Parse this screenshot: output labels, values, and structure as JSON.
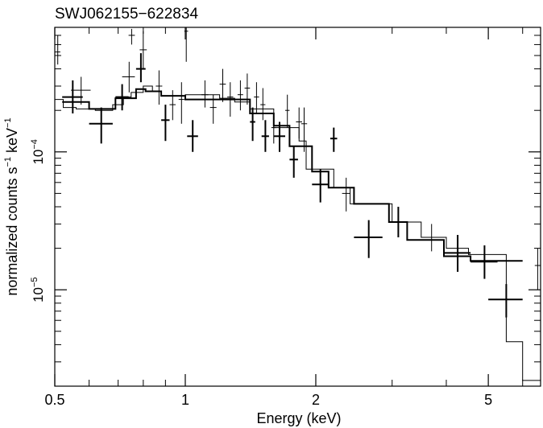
{
  "chart_data": {
    "type": "scatter",
    "title": "SWJ062155−622834",
    "xlabel": "Energy (keV)",
    "ylabel": {
      "prefix": "normalized counts s",
      "exp1": "−1",
      "middle": " keV",
      "exp2": "−1"
    },
    "x_scale": "log",
    "y_scale": "log",
    "xlim": [
      0.5,
      6.6
    ],
    "ylim": [
      2e-06,
      0.0008
    ],
    "x_ticks": [
      {
        "value": 0.5,
        "label": "0.5"
      },
      {
        "value": 1,
        "label": "1"
      },
      {
        "value": 2,
        "label": "2"
      },
      {
        "value": 5,
        "label": "5"
      }
    ],
    "y_ticks": [
      {
        "value": 0.0001,
        "mantissa": "10",
        "exp": "−4"
      },
      {
        "value": 1e-05,
        "mantissa": "10",
        "exp": "−5"
      }
    ],
    "grid": false,
    "legend": "none",
    "series": [
      {
        "style": "thin",
        "points": [
          {
            "x": 0.508,
            "xlo": 0.5,
            "xhi": 0.515,
            "y": 0.00053,
            "ylo": 0.00043,
            "yhi": 0.0007
          },
          {
            "x": 0.575,
            "xlo": 0.545,
            "xhi": 0.605,
            "y": 0.00028,
            "ylo": 0.00022,
            "yhi": 0.00035
          },
          {
            "x": 0.742,
            "xlo": 0.715,
            "xhi": 0.765,
            "y": 0.00035,
            "ylo": 0.00027,
            "yhi": 0.00045
          },
          {
            "x": 0.752,
            "xlo": 0.74,
            "xhi": 0.765,
            "y": 0.0007,
            "ylo": 0.0006,
            "yhi": 0.00078
          },
          {
            "x": 0.8,
            "xlo": 0.785,
            "xhi": 0.815,
            "y": 0.00055,
            "ylo": 0.0004,
            "yhi": 0.00075
          },
          {
            "x": 0.87,
            "xlo": 0.855,
            "xhi": 0.885,
            "y": 0.0003,
            "ylo": 0.00022,
            "yhi": 0.00039
          },
          {
            "x": 0.935,
            "xlo": 0.92,
            "xhi": 0.95,
            "y": 0.00022,
            "ylo": 0.00017,
            "yhi": 0.00028
          },
          {
            "x": 0.98,
            "xlo": 0.965,
            "xhi": 0.995,
            "y": 0.00024,
            "ylo": 0.00016,
            "yhi": 0.00032
          },
          {
            "x": 1.005,
            "xlo": 0.995,
            "xhi": 1.015,
            "y": 0.00075,
            "ylo": 0.00045,
            "yhi": 0.0008
          },
          {
            "x": 1.11,
            "xlo": 1.09,
            "xhi": 1.13,
            "y": 0.00026,
            "ylo": 0.00021,
            "yhi": 0.00033
          },
          {
            "x": 1.16,
            "xlo": 1.14,
            "xhi": 1.18,
            "y": 0.00021,
            "ylo": 0.00016,
            "yhi": 0.00026
          },
          {
            "x": 1.22,
            "xlo": 1.2,
            "xhi": 1.24,
            "y": 0.00031,
            "ylo": 0.00023,
            "yhi": 0.0004
          },
          {
            "x": 1.27,
            "xlo": 1.25,
            "xhi": 1.29,
            "y": 0.00025,
            "ylo": 0.00018,
            "yhi": 0.00032
          },
          {
            "x": 1.34,
            "xlo": 1.32,
            "xhi": 1.36,
            "y": 0.00026,
            "ylo": 0.0002,
            "yhi": 0.00033
          },
          {
            "x": 1.39,
            "xlo": 1.37,
            "xhi": 1.41,
            "y": 0.00029,
            "ylo": 0.00022,
            "yhi": 0.00037
          },
          {
            "x": 1.46,
            "xlo": 1.44,
            "xhi": 1.48,
            "y": 0.00025,
            "ylo": 0.00019,
            "yhi": 0.00032
          },
          {
            "x": 1.51,
            "xlo": 1.49,
            "xhi": 1.53,
            "y": 0.00022,
            "ylo": 0.00017,
            "yhi": 0.00029
          },
          {
            "x": 1.6,
            "xlo": 1.58,
            "xhi": 1.62,
            "y": 0.00015,
            "ylo": 0.000115,
            "yhi": 0.00019
          },
          {
            "x": 1.72,
            "xlo": 1.7,
            "xhi": 1.74,
            "y": 0.0002,
            "ylo": 0.00015,
            "yhi": 0.00026
          },
          {
            "x": 1.83,
            "xlo": 1.8,
            "xhi": 1.86,
            "y": 0.000165,
            "ylo": 0.000125,
            "yhi": 0.00021
          },
          {
            "x": 1.88,
            "xlo": 1.85,
            "xhi": 1.91,
            "y": 0.00016,
            "ylo": 0.0001,
            "yhi": 0.00021
          },
          {
            "x": 2.35,
            "xlo": 2.3,
            "xhi": 2.4,
            "y": 5e-05,
            "ylo": 3.7e-05,
            "yhi": 6.5e-05
          },
          {
            "x": 3.7,
            "xlo": 3.55,
            "xhi": 3.85,
            "y": 2.4e-05,
            "ylo": 1.9e-05,
            "yhi": 3e-05
          },
          {
            "x": 6.5,
            "xlo": 6.4,
            "xhi": 6.6,
            "y": 1.5e-05,
            "ylo": 1e-05,
            "yhi": 2e-05
          }
        ]
      },
      {
        "style": "thick",
        "points": [
          {
            "x": 0.55,
            "xlo": 0.52,
            "xhi": 0.58,
            "y": 0.00025,
            "ylo": 0.00019,
            "yhi": 0.00033
          },
          {
            "x": 0.64,
            "xlo": 0.6,
            "xhi": 0.68,
            "y": 0.00016,
            "ylo": 0.000115,
            "yhi": 0.00021
          },
          {
            "x": 0.715,
            "xlo": 0.69,
            "xhi": 0.74,
            "y": 0.00025,
            "ylo": 0.0002,
            "yhi": 0.00031
          },
          {
            "x": 0.79,
            "xlo": 0.77,
            "xhi": 0.81,
            "y": 0.0004,
            "ylo": 0.00032,
            "yhi": 0.00052
          },
          {
            "x": 0.9,
            "xlo": 0.88,
            "xhi": 0.92,
            "y": 0.00017,
            "ylo": 0.00012,
            "yhi": 0.00022
          },
          {
            "x": 1.04,
            "xlo": 1.01,
            "xhi": 1.07,
            "y": 0.00013,
            "ylo": 0.0001,
            "yhi": 0.00017
          },
          {
            "x": 1.43,
            "xlo": 1.41,
            "xhi": 1.45,
            "y": 0.000165,
            "ylo": 0.00012,
            "yhi": 0.00021
          },
          {
            "x": 1.53,
            "xlo": 1.5,
            "xhi": 1.56,
            "y": 0.00013,
            "ylo": 0.0001,
            "yhi": 0.00017
          },
          {
            "x": 1.65,
            "xlo": 1.6,
            "xhi": 1.7,
            "y": 0.00013,
            "ylo": 0.0001,
            "yhi": 0.000165
          },
          {
            "x": 1.78,
            "xlo": 1.74,
            "xhi": 1.82,
            "y": 8.8e-05,
            "ylo": 6.5e-05,
            "yhi": 0.00011
          },
          {
            "x": 2.05,
            "xlo": 1.96,
            "xhi": 2.14,
            "y": 5.8e-05,
            "ylo": 4.3e-05,
            "yhi": 7.5e-05
          },
          {
            "x": 2.2,
            "xlo": 2.16,
            "xhi": 2.24,
            "y": 0.000125,
            "ylo": 0.0001,
            "yhi": 0.00015
          },
          {
            "x": 2.65,
            "xlo": 2.45,
            "xhi": 2.85,
            "y": 2.4e-05,
            "ylo": 1.7e-05,
            "yhi": 3.2e-05
          },
          {
            "x": 3.1,
            "xlo": 2.95,
            "xhi": 3.25,
            "y": 3.1e-05,
            "ylo": 2.4e-05,
            "yhi": 4e-05
          },
          {
            "x": 4.25,
            "xlo": 3.95,
            "xhi": 4.55,
            "y": 1.85e-05,
            "ylo": 1.35e-05,
            "yhi": 2.5e-05
          },
          {
            "x": 4.9,
            "xlo": 4.55,
            "xhi": 5.25,
            "y": 1.6e-05,
            "ylo": 1.2e-05,
            "yhi": 2.1e-05
          },
          {
            "x": 5.5,
            "xlo": 5.0,
            "xhi": 6.0,
            "y": 8.5e-06,
            "ylo": 6.3e-06,
            "yhi": 1.1e-05
          }
        ]
      }
    ],
    "models": [
      {
        "style": "thin",
        "steps": [
          {
            "x0": 0.5,
            "x1": 0.523,
            "y": 0.00024
          },
          {
            "x0": 0.523,
            "x1": 0.56,
            "y": 0.00021
          },
          {
            "x0": 0.56,
            "x1": 0.62,
            "y": 0.000205
          },
          {
            "x0": 0.62,
            "x1": 0.68,
            "y": 0.0002
          },
          {
            "x0": 0.68,
            "x1": 0.72,
            "y": 0.00022
          },
          {
            "x0": 0.72,
            "x1": 0.75,
            "y": 0.00025
          },
          {
            "x0": 0.75,
            "x1": 0.8,
            "y": 0.00027
          },
          {
            "x0": 0.8,
            "x1": 0.84,
            "y": 0.0003
          },
          {
            "x0": 0.84,
            "x1": 0.88,
            "y": 0.000275
          },
          {
            "x0": 0.88,
            "x1": 1.0,
            "y": 0.000255
          },
          {
            "x0": 1.0,
            "x1": 1.2,
            "y": 0.00026
          },
          {
            "x0": 1.2,
            "x1": 1.3,
            "y": 0.000245
          },
          {
            "x0": 1.3,
            "x1": 1.41,
            "y": 0.00023
          },
          {
            "x0": 1.41,
            "x1": 1.6,
            "y": 0.000205
          },
          {
            "x0": 1.6,
            "x1": 1.83,
            "y": 0.00015
          },
          {
            "x0": 1.83,
            "x1": 1.9,
            "y": 0.00012
          },
          {
            "x0": 1.9,
            "x1": 2.2,
            "y": 7.5e-05
          },
          {
            "x0": 2.2,
            "x1": 2.4,
            "y": 5.5e-05
          },
          {
            "x0": 2.4,
            "x1": 3.0,
            "y": 4.2e-05
          },
          {
            "x0": 3.0,
            "x1": 3.5,
            "y": 3.1e-05
          },
          {
            "x0": 3.5,
            "x1": 4.0,
            "y": 2.4e-05
          },
          {
            "x0": 4.0,
            "x1": 4.5,
            "y": 2e-05
          },
          {
            "x0": 4.5,
            "x1": 5.5,
            "y": 1.8e-05
          },
          {
            "x0": 5.5,
            "x1": 6.0,
            "y": 4.2e-06
          },
          {
            "x0": 6.0,
            "x1": 6.6,
            "y": 2.2e-06
          }
        ]
      },
      {
        "style": "thick",
        "steps": [
          {
            "x0": 0.52,
            "x1": 0.6,
            "y": 0.00023
          },
          {
            "x0": 0.6,
            "x1": 0.69,
            "y": 0.000205
          },
          {
            "x0": 0.69,
            "x1": 0.77,
            "y": 0.000245
          },
          {
            "x0": 0.77,
            "x1": 0.81,
            "y": 0.000285
          },
          {
            "x0": 0.81,
            "x1": 0.88,
            "y": 0.000275
          },
          {
            "x0": 0.88,
            "x1": 1.0,
            "y": 0.000255
          },
          {
            "x0": 1.0,
            "x1": 1.41,
            "y": 0.00024
          },
          {
            "x0": 1.41,
            "x1": 1.6,
            "y": 0.00019
          },
          {
            "x0": 1.6,
            "x1": 1.74,
            "y": 0.000155
          },
          {
            "x0": 1.74,
            "x1": 1.96,
            "y": 0.00011
          },
          {
            "x0": 1.96,
            "x1": 2.14,
            "y": 7.2e-05
          },
          {
            "x0": 2.14,
            "x1": 2.45,
            "y": 5.5e-05
          },
          {
            "x0": 2.45,
            "x1": 2.95,
            "y": 4.2e-05
          },
          {
            "x0": 2.95,
            "x1": 3.25,
            "y": 3.1e-05
          },
          {
            "x0": 3.25,
            "x1": 3.95,
            "y": 2.3e-05
          },
          {
            "x0": 3.95,
            "x1": 4.55,
            "y": 1.75e-05
          },
          {
            "x0": 4.55,
            "x1": 6.0,
            "y": 1.62e-05
          }
        ]
      }
    ]
  }
}
